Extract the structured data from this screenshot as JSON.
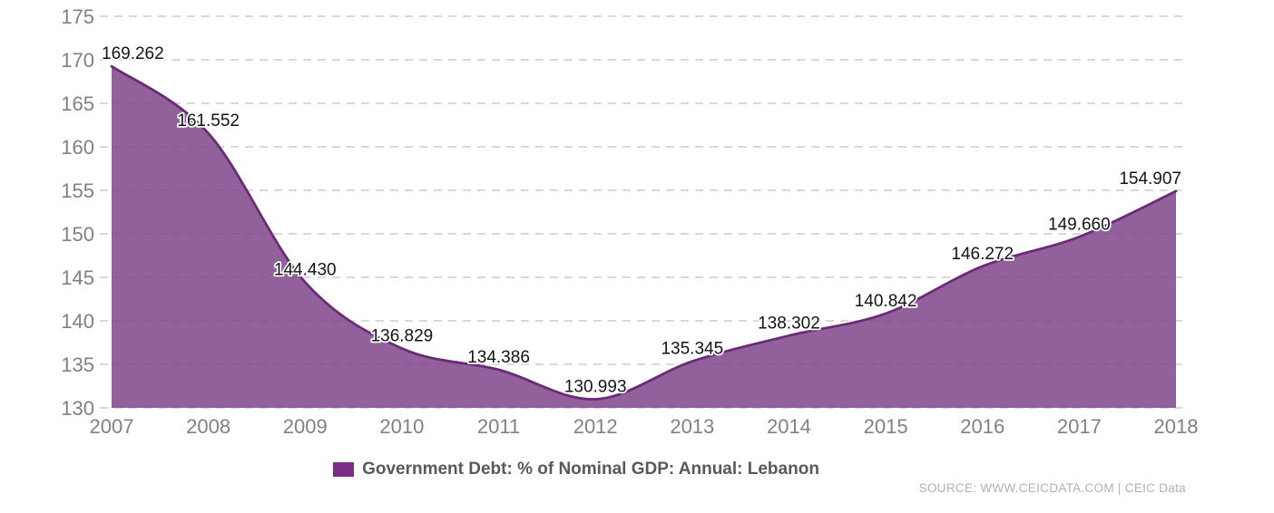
{
  "chart_data": {
    "type": "area",
    "title": "",
    "x": [
      "2007",
      "2008",
      "2009",
      "2010",
      "2011",
      "2012",
      "2013",
      "2014",
      "2015",
      "2016",
      "2017",
      "2018"
    ],
    "series": [
      {
        "name": "Government Debt: % of Nominal GDP: Annual: Lebanon",
        "values": [
          169.262,
          161.552,
          144.43,
          136.829,
          134.386,
          130.993,
          135.345,
          138.302,
          140.842,
          146.272,
          149.66,
          154.907
        ]
      }
    ],
    "data_labels": [
      "169.262",
      "161.552",
      "144.430",
      "136.829",
      "134.386",
      "130.993",
      "135.345",
      "138.302",
      "140.842",
      "146.272",
      "149.660",
      "154.907"
    ],
    "xlabel": "",
    "ylabel": "",
    "ylim": [
      130,
      175
    ],
    "yticks": [
      130,
      135,
      140,
      145,
      150,
      155,
      160,
      165,
      170,
      175
    ],
    "grid": true,
    "grid_style": "dashed",
    "legend_position": "bottom",
    "curve": "smooth"
  },
  "legend": {
    "label": "Government Debt: % of Nominal GDP: Annual: Lebanon"
  },
  "source": {
    "text": "SOURCE: WWW.CEICDATA.COM | CEIC Data"
  },
  "colors": {
    "area_fill": "#8c5897",
    "area_fill_opacity": "0.95",
    "line": "#6a2b76",
    "legend_swatch": "#7b2e86",
    "gridline": "#dcdcdc",
    "axis_text": "#818181",
    "data_label_text": "#141414",
    "legend_text": "#58595b",
    "source_text": "#b1b1b1",
    "background": "#ffffff"
  }
}
